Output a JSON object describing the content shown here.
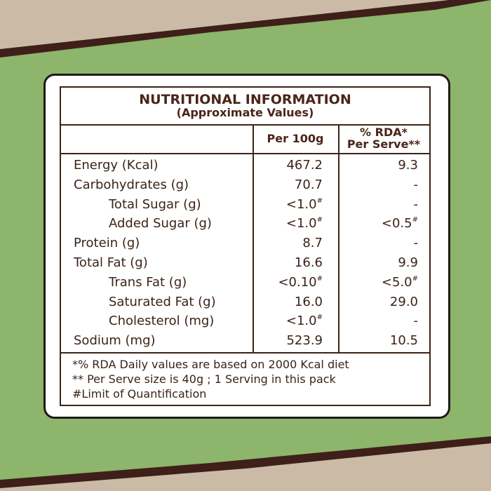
{
  "table": {
    "title": "NUTRITIONAL INFORMATION",
    "subtitle": "(Approximate Values)",
    "columns": [
      "Per 100g",
      "% RDA*\nPer Serve**"
    ],
    "rows": [
      {
        "label": "Energy (Kcal)",
        "cells": [
          {
            "text": "467.2"
          },
          {
            "text": "9.3"
          }
        ]
      },
      {
        "label": "Carbohydrates (g)",
        "cells": [
          {
            "text": "70.7"
          },
          {
            "text": "-"
          }
        ]
      },
      {
        "label": "Total Sugar (g)",
        "indent": true,
        "cells": [
          {
            "text": "<1.0",
            "sup": "#"
          },
          {
            "text": "-"
          }
        ]
      },
      {
        "label": "Added Sugar (g)",
        "indent": true,
        "cells": [
          {
            "text": "<1.0",
            "sup": "#"
          },
          {
            "text": "<0.5",
            "sup": "#"
          }
        ]
      },
      {
        "label": "Protein (g)",
        "cells": [
          {
            "text": "8.7"
          },
          {
            "text": "-"
          }
        ]
      },
      {
        "label": "Total Fat (g)",
        "cells": [
          {
            "text": "16.6"
          },
          {
            "text": "9.9"
          }
        ]
      },
      {
        "label": "Trans Fat (g)",
        "indent": true,
        "cells": [
          {
            "text": "<0.10",
            "sup": "#"
          },
          {
            "text": "<5.0",
            "sup": "#"
          }
        ]
      },
      {
        "label": "Saturated Fat (g)",
        "indent": true,
        "cells": [
          {
            "text": "16.0"
          },
          {
            "text": "29.0"
          }
        ]
      },
      {
        "label": "Cholesterol (mg)",
        "indent": true,
        "cells": [
          {
            "text": "<1.0",
            "sup": "#"
          },
          {
            "text": "-"
          }
        ]
      },
      {
        "label": "Sodium (mg)",
        "cells": [
          {
            "text": "523.9"
          },
          {
            "text": "10.5"
          }
        ]
      }
    ],
    "footnotes": [
      "*% RDA Daily values are based on 2000 Kcal diet",
      "** Per Serve size is 40g ; 1 Serving in this pack",
      "#Limit of Quantification"
    ]
  }
}
